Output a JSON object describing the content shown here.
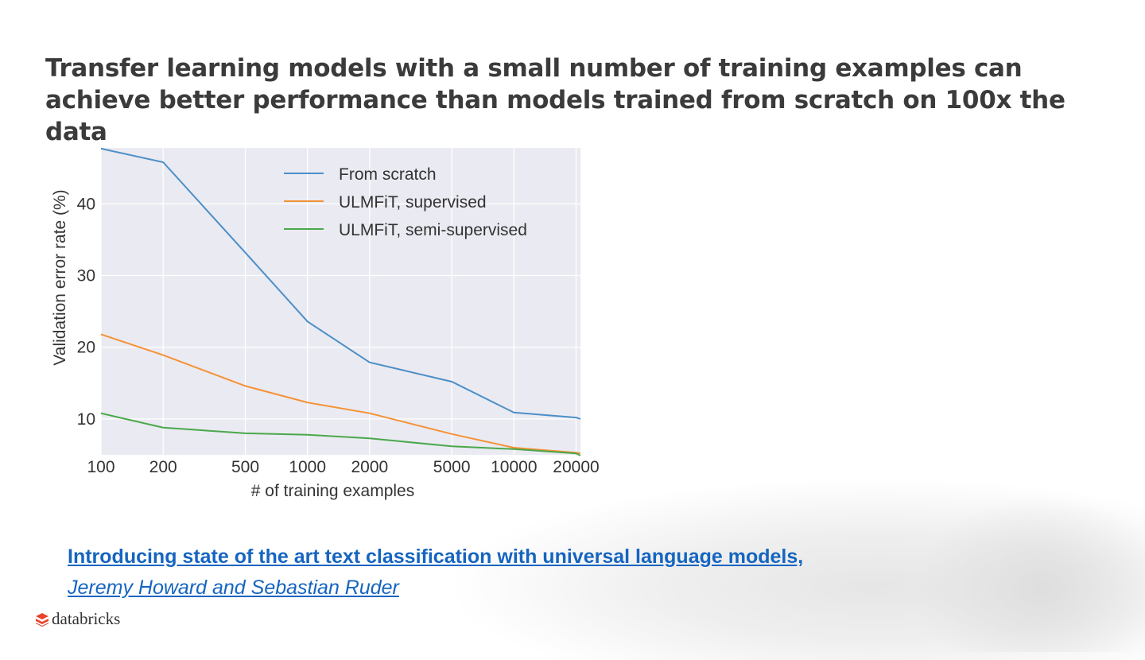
{
  "slide": {
    "title": "Transfer learning models with a small number of training examples can achieve better performance than models trained from scratch on 100x the data",
    "reference_title": "Introducing state of the art text classification with universal language models,",
    "reference_authors": "Jeremy Howard and Sebastian Ruder",
    "logo_text": "databricks",
    "logo_icon": "databricks-stack-icon",
    "brand_color": "#e8432d",
    "link_color": "#1565c0"
  },
  "chart_data": {
    "type": "line",
    "title": "",
    "xlabel": "# of training examples",
    "ylabel": "Validation error rate (%)",
    "xscale": "log",
    "xlim": [
      100,
      21000
    ],
    "ylim": [
      5.0,
      47.8
    ],
    "xticks": [
      100,
      200,
      500,
      1000,
      2000,
      5000,
      10000,
      20000
    ],
    "xtick_labels": [
      "100",
      "200",
      "500",
      "1000",
      "2000",
      "5000",
      "10000",
      "20000"
    ],
    "yticks": [
      10,
      20,
      30,
      40
    ],
    "ytick_labels": [
      "10",
      "20",
      "30",
      "40"
    ],
    "grid": true,
    "legend_position": "top-right",
    "background": "#eaeaf2",
    "x": [
      100,
      200,
      500,
      1000,
      2000,
      5000,
      10000,
      20000,
      21000
    ],
    "series": [
      {
        "name": "From scratch",
        "color": "#4c8fc8",
        "values": [
          47.7,
          45.8,
          33.2,
          23.6,
          17.9,
          15.2,
          10.9,
          10.2,
          10.0
        ]
      },
      {
        "name": "ULMFiT, supervised",
        "color": "#f59236",
        "values": [
          21.8,
          18.9,
          14.6,
          12.3,
          10.8,
          7.9,
          6.0,
          5.3,
          5.2
        ]
      },
      {
        "name": "ULMFiT, semi-supervised",
        "color": "#4aa84a",
        "values": [
          10.8,
          8.8,
          8.0,
          7.8,
          7.3,
          6.2,
          5.8,
          5.2,
          4.9
        ]
      }
    ]
  }
}
